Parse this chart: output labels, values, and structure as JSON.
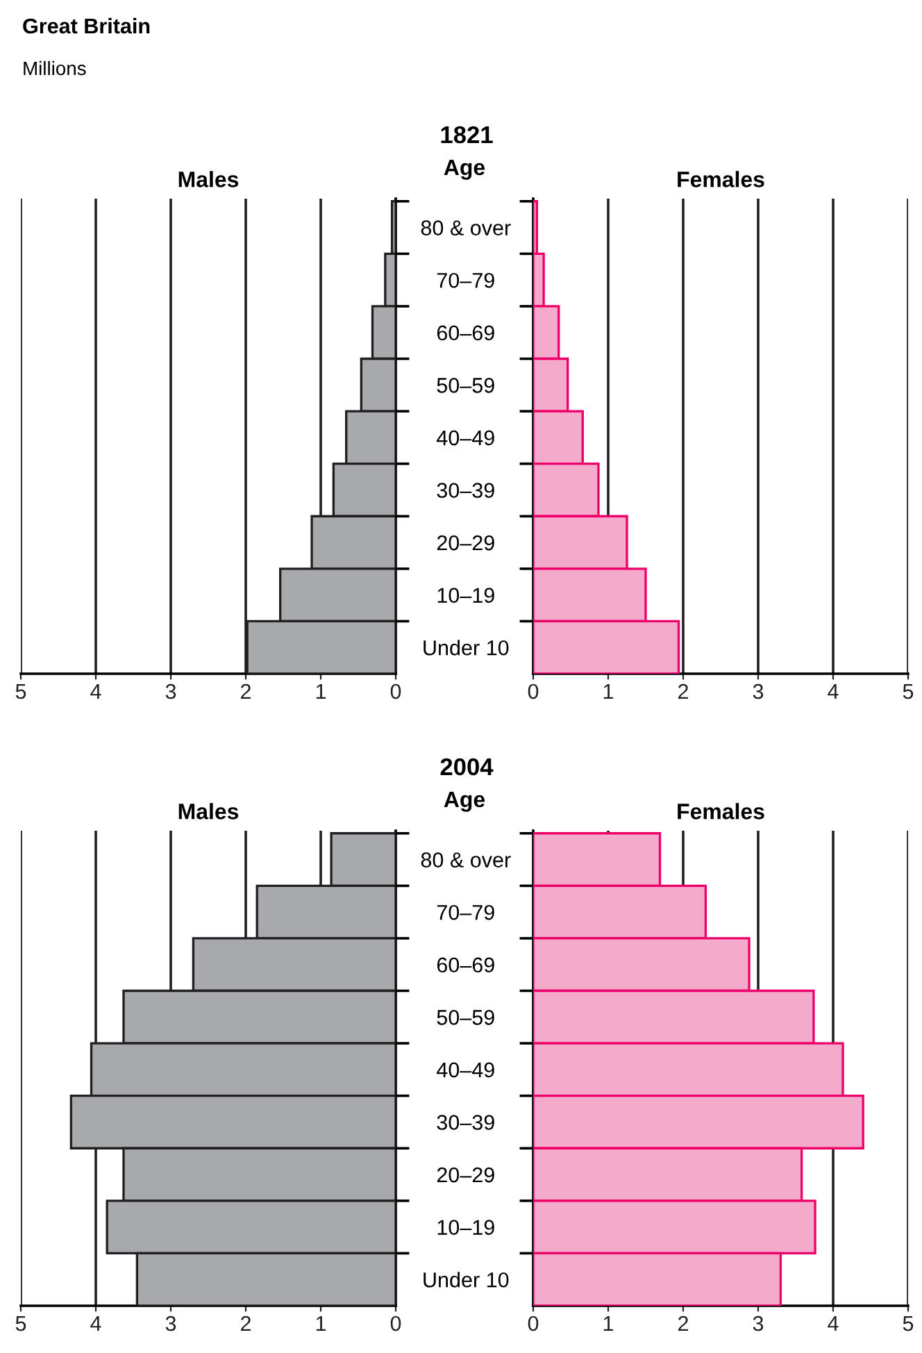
{
  "chart_data": [
    {
      "type": "bar",
      "orientation": "horizontal",
      "title": "Males",
      "annotations": [
        "Great Britain",
        "Millions"
      ],
      "categories": [
        null,
        null,
        null,
        null,
        null,
        null,
        null,
        null,
        null
      ],
      "series": [
        {
          "color": "#a7a9ac",
          "values": [
            0.05,
            0.14,
            0.31,
            0.46,
            0.66,
            0.83,
            1.12,
            1.54,
            1.98
          ]
        }
      ],
      "xlim": [
        5,
        0
      ],
      "xticks": [
        5,
        4,
        3,
        2,
        1,
        0
      ],
      "grid": "x",
      "tick_labels": "x"
    },
    {
      "type": "bar",
      "orientation": "horizontal",
      "title": "Females",
      "subtitle": "1821",
      "ylabel": "Age",
      "categories": [
        "80 & over",
        "70–79",
        "60–69",
        "50–59",
        "40–49",
        "30–39",
        "20–29",
        "10–19",
        "Under 10"
      ],
      "series": [
        {
          "color": "#f4aacb",
          "values": [
            0.05,
            0.14,
            0.34,
            0.46,
            0.66,
            0.87,
            1.25,
            1.5,
            1.94
          ]
        }
      ],
      "xlim": [
        0,
        5
      ],
      "xticks": [
        0,
        1,
        2,
        3,
        4,
        5
      ],
      "grid": "x"
    },
    {
      "type": "bar",
      "orientation": "horizontal",
      "title": "Males",
      "categories": [
        null,
        null,
        null,
        null,
        null,
        null,
        null,
        null,
        null
      ],
      "series": [
        {
          "color": "#a7a9ac",
          "values": [
            0.86,
            1.85,
            2.7,
            3.63,
            4.06,
            4.33,
            3.63,
            3.85,
            3.45
          ]
        }
      ],
      "xlim": [
        5,
        0
      ],
      "xticks": [
        5,
        4,
        3,
        2,
        1,
        0
      ],
      "grid": "x",
      "tick_labels": "x"
    },
    {
      "type": "bar",
      "orientation": "horizontal",
      "title": "Females",
      "subtitle": "2004",
      "ylabel": "Age",
      "categories": [
        "80 & over",
        "70–79",
        "60–69",
        "50–59",
        "40–49",
        "30–39",
        "20–29",
        "10–19",
        "Under 10"
      ],
      "series": [
        {
          "color": "#f4aacb",
          "values": [
            1.69,
            2.3,
            2.88,
            3.74,
            4.13,
            4.4,
            3.58,
            3.76,
            3.3
          ]
        }
      ],
      "xlim": [
        0,
        5
      ],
      "xticks": [
        0,
        1,
        2,
        3,
        4,
        5
      ],
      "grid": "x"
    }
  ]
}
